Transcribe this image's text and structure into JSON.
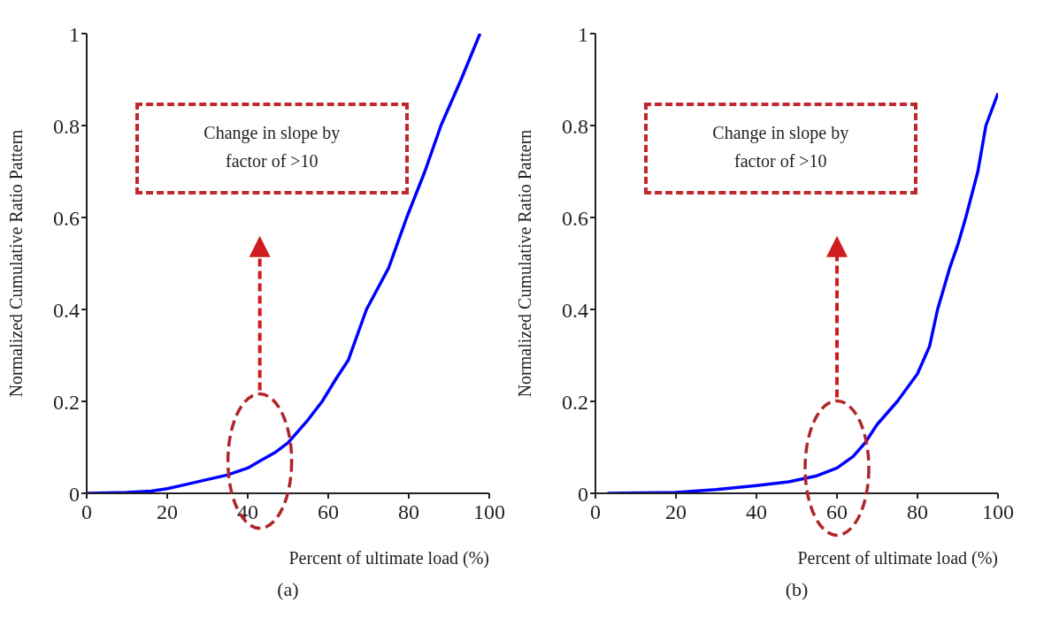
{
  "chart_data": [
    {
      "type": "line",
      "title": "(a)",
      "xlabel": "Percent of ultimate load (%)",
      "ylabel": "Normalized Cumulative Ratio Pattern",
      "xlim": [
        0,
        100
      ],
      "ylim": [
        0,
        1
      ],
      "xticks": [
        0,
        20,
        40,
        60,
        80,
        100
      ],
      "yticks": [
        0,
        0.2,
        0.4,
        0.6,
        0.8,
        1
      ],
      "grid": false,
      "legend": false,
      "marker": "none",
      "line_style": "solid",
      "series": [
        {
          "color": "#0000ff",
          "x": [
            0,
            10,
            16,
            20,
            25,
            30,
            35,
            40,
            43,
            47,
            50,
            55,
            58.5,
            62,
            65,
            69.5,
            75,
            79.5,
            84,
            88,
            93,
            97.7
          ],
          "values": [
            0,
            0.002,
            0.005,
            0.01,
            0.02,
            0.03,
            0.04,
            0.055,
            0.07,
            0.09,
            0.11,
            0.16,
            0.2,
            0.25,
            0.29,
            0.4,
            0.49,
            0.6,
            0.7,
            0.8,
            0.9,
            1.0
          ]
        }
      ],
      "annotations": [
        "Change in slope by factor of >10"
      ]
    },
    {
      "type": "line",
      "title": "(b)",
      "xlabel": "Percent of ultimate load (%)",
      "ylabel": "Normalized Cumulative Ratio Pattern",
      "xlim": [
        0,
        100
      ],
      "ylim": [
        0,
        1
      ],
      "xticks": [
        0,
        20,
        40,
        60,
        80,
        100
      ],
      "yticks": [
        0,
        0.2,
        0.4,
        0.6,
        0.8,
        1
      ],
      "grid": false,
      "legend": false,
      "marker": "none",
      "line_style": "solid",
      "series": [
        {
          "color": "#0000ff",
          "x": [
            3,
            20,
            30,
            40,
            48,
            55,
            60,
            64,
            67,
            70,
            75,
            80,
            83,
            85,
            88,
            90,
            92,
            95,
            97,
            100
          ],
          "values": [
            0,
            0.002,
            0.008,
            0.017,
            0.025,
            0.038,
            0.055,
            0.08,
            0.11,
            0.15,
            0.2,
            0.26,
            0.32,
            0.4,
            0.49,
            0.54,
            0.6,
            0.7,
            0.8,
            0.87
          ]
        }
      ],
      "annotations": [
        "Change in slope by factor of >10"
      ]
    }
  ]
}
